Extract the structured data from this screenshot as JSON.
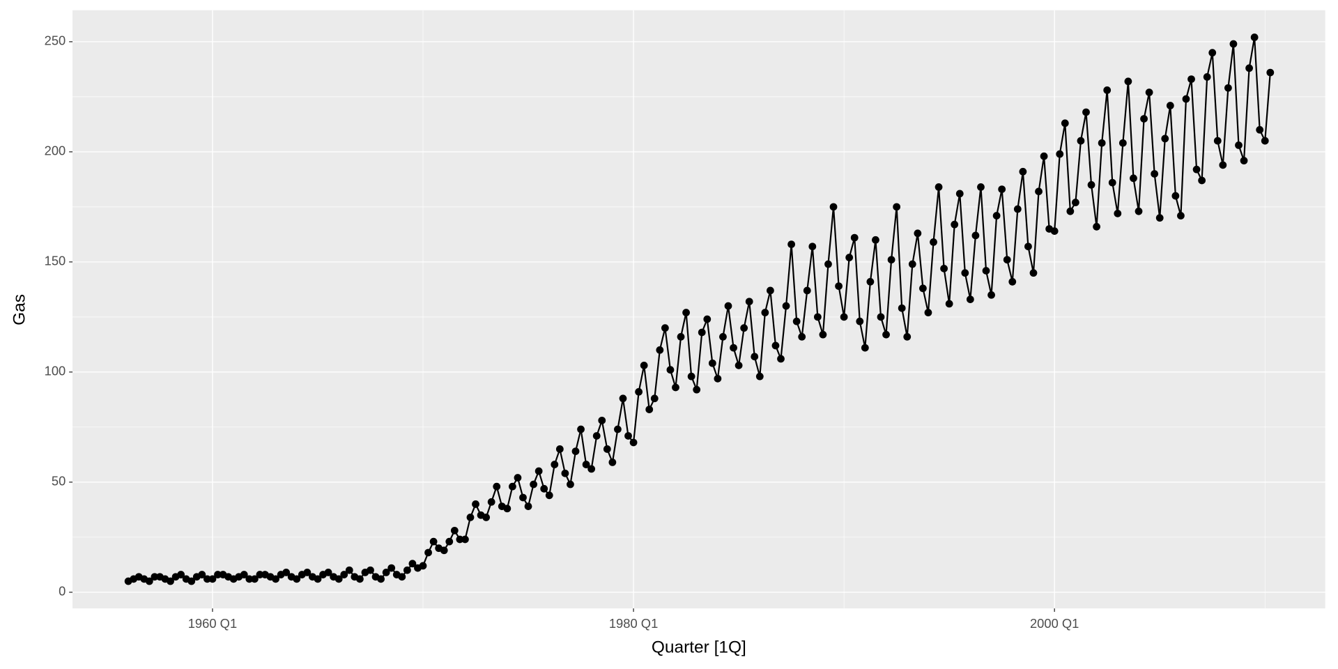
{
  "chart_data": {
    "type": "line",
    "x_label": "Quarter [1Q]",
    "y_label": "Gas",
    "x": [
      "1956 Q1",
      "1956 Q2",
      "1956 Q3",
      "1956 Q4",
      "1957 Q1",
      "1957 Q2",
      "1957 Q3",
      "1957 Q4",
      "1958 Q1",
      "1958 Q2",
      "1958 Q3",
      "1958 Q4",
      "1959 Q1",
      "1959 Q2",
      "1959 Q3",
      "1959 Q4",
      "1960 Q1",
      "1960 Q2",
      "1960 Q3",
      "1960 Q4",
      "1961 Q1",
      "1961 Q2",
      "1961 Q3",
      "1961 Q4",
      "1962 Q1",
      "1962 Q2",
      "1962 Q3",
      "1962 Q4",
      "1963 Q1",
      "1963 Q2",
      "1963 Q3",
      "1963 Q4",
      "1964 Q1",
      "1964 Q2",
      "1964 Q3",
      "1964 Q4",
      "1965 Q1",
      "1965 Q2",
      "1965 Q3",
      "1965 Q4",
      "1966 Q1",
      "1966 Q2",
      "1966 Q3",
      "1966 Q4",
      "1967 Q1",
      "1967 Q2",
      "1967 Q3",
      "1967 Q4",
      "1968 Q1",
      "1968 Q2",
      "1968 Q3",
      "1968 Q4",
      "1969 Q1",
      "1969 Q2",
      "1969 Q3",
      "1969 Q4",
      "1970 Q1",
      "1970 Q2",
      "1970 Q3",
      "1970 Q4",
      "1971 Q1",
      "1971 Q2",
      "1971 Q3",
      "1971 Q4",
      "1972 Q1",
      "1972 Q2",
      "1972 Q3",
      "1972 Q4",
      "1973 Q1",
      "1973 Q2",
      "1973 Q3",
      "1973 Q4",
      "1974 Q1",
      "1974 Q2",
      "1974 Q3",
      "1974 Q4",
      "1975 Q1",
      "1975 Q2",
      "1975 Q3",
      "1975 Q4",
      "1976 Q1",
      "1976 Q2",
      "1976 Q3",
      "1976 Q4",
      "1977 Q1",
      "1977 Q2",
      "1977 Q3",
      "1977 Q4",
      "1978 Q1",
      "1978 Q2",
      "1978 Q3",
      "1978 Q4",
      "1979 Q1",
      "1979 Q2",
      "1979 Q3",
      "1979 Q4",
      "1980 Q1",
      "1980 Q2",
      "1980 Q3",
      "1980 Q4",
      "1981 Q1",
      "1981 Q2",
      "1981 Q3",
      "1981 Q4",
      "1982 Q1",
      "1982 Q2",
      "1982 Q3",
      "1982 Q4",
      "1983 Q1",
      "1983 Q2",
      "1983 Q3",
      "1983 Q4",
      "1984 Q1",
      "1984 Q2",
      "1984 Q3",
      "1984 Q4",
      "1985 Q1",
      "1985 Q2",
      "1985 Q3",
      "1985 Q4",
      "1986 Q1",
      "1986 Q2",
      "1986 Q3",
      "1986 Q4",
      "1987 Q1",
      "1987 Q2",
      "1987 Q3",
      "1987 Q4",
      "1988 Q1",
      "1988 Q2",
      "1988 Q3",
      "1988 Q4",
      "1989 Q1",
      "1989 Q2",
      "1989 Q3",
      "1989 Q4",
      "1990 Q1",
      "1990 Q2",
      "1990 Q3",
      "1990 Q4",
      "1991 Q1",
      "1991 Q2",
      "1991 Q3",
      "1991 Q4",
      "1992 Q1",
      "1992 Q2",
      "1992 Q3",
      "1992 Q4",
      "1993 Q1",
      "1993 Q2",
      "1993 Q3",
      "1993 Q4",
      "1994 Q1",
      "1994 Q2",
      "1994 Q3",
      "1994 Q4",
      "1995 Q1",
      "1995 Q2",
      "1995 Q3",
      "1995 Q4",
      "1996 Q1",
      "1996 Q2",
      "1996 Q3",
      "1996 Q4",
      "1997 Q1",
      "1997 Q2",
      "1997 Q3",
      "1997 Q4",
      "1998 Q1",
      "1998 Q2",
      "1998 Q3",
      "1998 Q4",
      "1999 Q1",
      "1999 Q2",
      "1999 Q3",
      "1999 Q4",
      "2000 Q1",
      "2000 Q2",
      "2000 Q3",
      "2000 Q4",
      "2001 Q1",
      "2001 Q2",
      "2001 Q3",
      "2001 Q4",
      "2002 Q1",
      "2002 Q2",
      "2002 Q3",
      "2002 Q4",
      "2003 Q1",
      "2003 Q2",
      "2003 Q3",
      "2003 Q4",
      "2004 Q1",
      "2004 Q2",
      "2004 Q3",
      "2004 Q4",
      "2005 Q1",
      "2005 Q2",
      "2005 Q3",
      "2005 Q4",
      "2006 Q1",
      "2006 Q2",
      "2006 Q3",
      "2006 Q4",
      "2007 Q1",
      "2007 Q2",
      "2007 Q3",
      "2007 Q4",
      "2008 Q1",
      "2008 Q2",
      "2008 Q3",
      "2008 Q4",
      "2009 Q1",
      "2009 Q2",
      "2009 Q3",
      "2009 Q4",
      "2010 Q1",
      "2010 Q2"
    ],
    "series": [
      {
        "name": "Gas",
        "color": "#000000",
        "values": [
          5,
          6,
          7,
          6,
          5,
          7,
          7,
          6,
          5,
          7,
          8,
          6,
          5,
          7,
          8,
          6,
          6,
          8,
          8,
          7,
          6,
          7,
          8,
          6,
          6,
          8,
          8,
          7,
          6,
          8,
          9,
          7,
          6,
          8,
          9,
          7,
          6,
          8,
          9,
          7,
          6,
          8,
          10,
          7,
          6,
          9,
          10,
          7,
          6,
          9,
          11,
          8,
          7,
          10,
          13,
          11,
          12,
          18,
          23,
          20,
          19,
          23,
          28,
          24,
          24,
          34,
          40,
          35,
          34,
          41,
          48,
          39,
          38,
          48,
          52,
          43,
          39,
          49,
          55,
          47,
          44,
          58,
          65,
          54,
          49,
          64,
          74,
          58,
          56,
          71,
          78,
          65,
          59,
          74,
          88,
          71,
          68,
          91,
          103,
          83,
          88,
          110,
          120,
          101,
          93,
          116,
          127,
          98,
          92,
          118,
          124,
          104,
          97,
          116,
          130,
          111,
          103,
          120,
          132,
          107,
          98,
          127,
          137,
          112,
          106,
          130,
          158,
          123,
          116,
          137,
          157,
          125,
          117,
          149,
          175,
          139,
          125,
          152,
          161,
          123,
          111,
          141,
          160,
          125,
          117,
          151,
          175,
          129,
          116,
          149,
          163,
          138,
          127,
          159,
          184,
          147,
          131,
          167,
          181,
          145,
          133,
          162,
          184,
          146,
          135,
          171,
          183,
          151,
          141,
          174,
          191,
          157,
          145,
          182,
          198,
          165,
          164,
          199,
          213,
          173,
          177,
          205,
          218,
          185,
          166,
          204,
          228,
          186,
          172,
          204,
          232,
          188,
          173,
          215,
          227,
          190,
          170,
          206,
          221,
          180,
          171,
          224,
          233,
          192,
          187,
          234,
          245,
          205,
          194,
          229,
          249,
          203,
          196,
          238,
          252,
          210,
          205,
          236
        ]
      }
    ],
    "xlim": [
      1953.35,
      2012.86
    ],
    "xticks": [
      {
        "value": 1960,
        "label": "1960 Q1"
      },
      {
        "value": 1980,
        "label": "1980 Q1"
      },
      {
        "value": 2000,
        "label": "2000 Q1"
      }
    ],
    "ylim": [
      -7.35,
      264.3
    ],
    "yticks": [
      0,
      50,
      100,
      150,
      200,
      250
    ],
    "grid": true
  }
}
